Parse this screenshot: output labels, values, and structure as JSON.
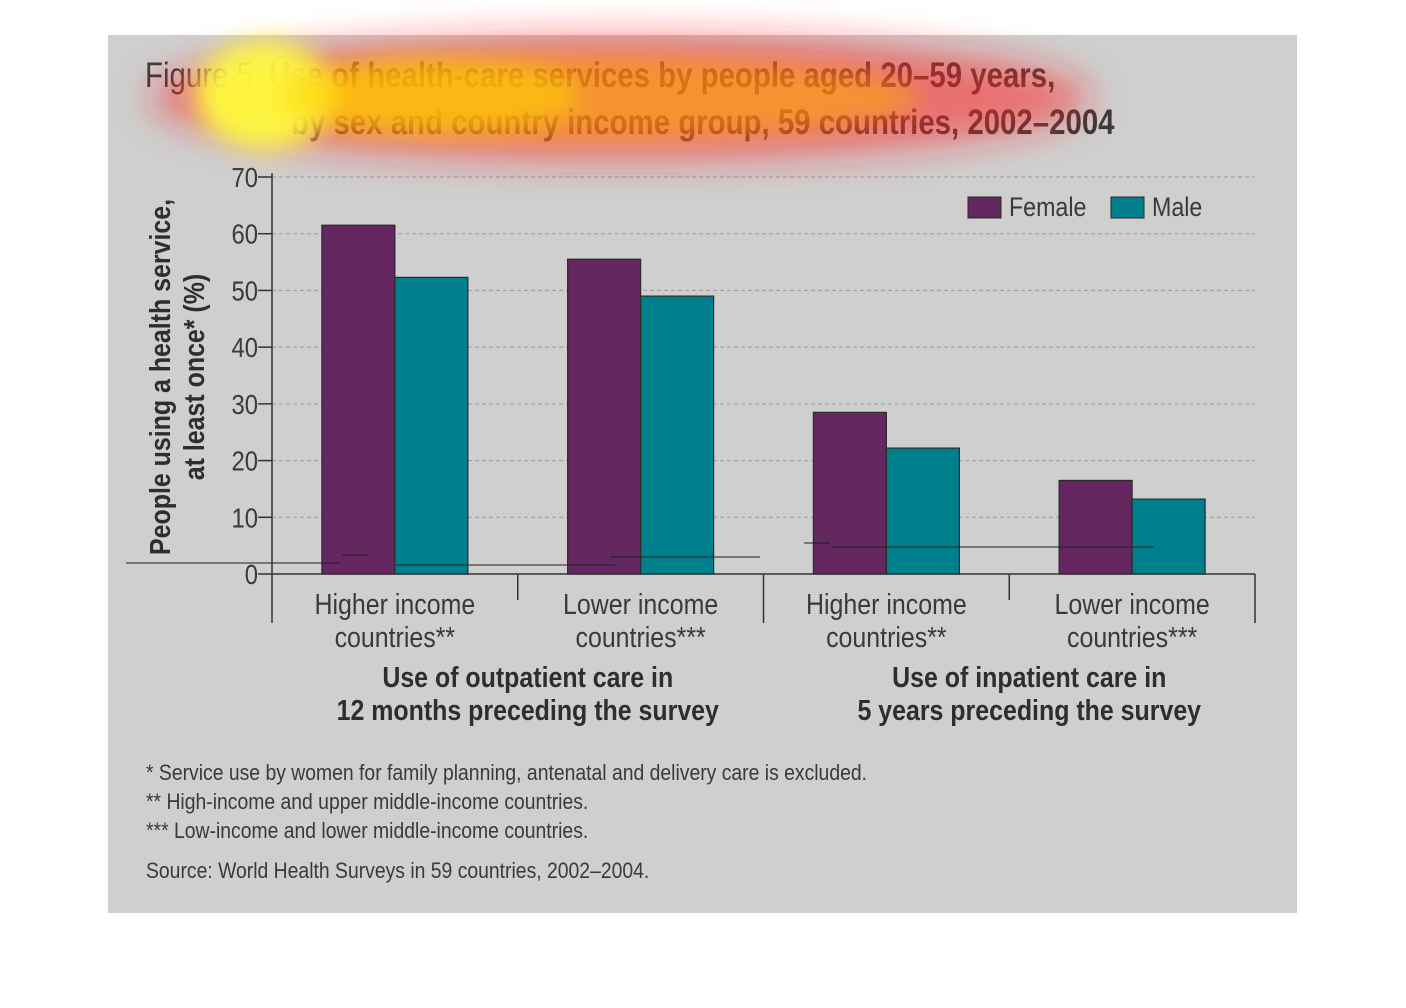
{
  "title": {
    "prefix": "Figure 5",
    "line1": "Use of health-care services by people aged 20–59 years,",
    "line2": "by sex and country income group, 59 countries, 2002–2004"
  },
  "chart_data": {
    "type": "bar",
    "categories": [
      "Higher income countries**",
      "Lower income countries***",
      "Higher income countries**",
      "Lower income countries***"
    ],
    "category_lines": [
      [
        "Higher income",
        "countries**"
      ],
      [
        "Lower income",
        "countries***"
      ],
      [
        "Higher income",
        "countries**"
      ],
      [
        "Lower income",
        "countries***"
      ]
    ],
    "groups": [
      {
        "label_lines": [
          "Use of outpatient care in",
          "12 months preceding the survey"
        ]
      },
      {
        "label_lines": [
          "Use of inpatient care in",
          "5 years preceding the survey"
        ]
      }
    ],
    "series": [
      {
        "name": "Female",
        "color": "#64275f",
        "values": [
          61.5,
          55.5,
          28.5,
          16.5
        ]
      },
      {
        "name": "Male",
        "color": "#00808c",
        "values": [
          52.3,
          49,
          22.2,
          13.2
        ]
      }
    ],
    "ylabel_lines": [
      "People using a health service,",
      "at least once* (%)"
    ],
    "ylim": [
      0,
      70
    ],
    "yticks": [
      0,
      10,
      20,
      30,
      40,
      50,
      60,
      70
    ],
    "grid": true,
    "legend_position": "top-right"
  },
  "footnotes": [
    "* Service use by women for family planning, antenatal and delivery care is excluded.",
    "** High-income and upper middle-income countries.",
    "*** Low-income and lower middle-income countries."
  ],
  "source": "Source: World Health Surveys in 59 countries, 2002–2004."
}
